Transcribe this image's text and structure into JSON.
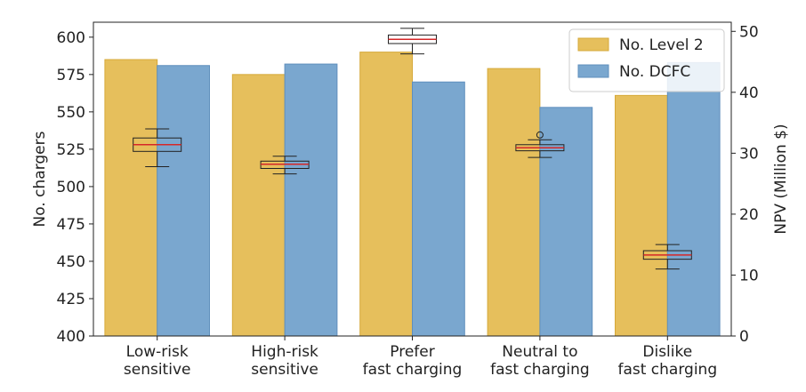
{
  "chart_data": {
    "type": "bar",
    "categories": [
      [
        "Low-risk",
        "sensitive"
      ],
      [
        "High-risk",
        "sensitive"
      ],
      [
        "Prefer",
        "fast charging"
      ],
      [
        "Neutral to",
        "fast charging"
      ],
      [
        "Dislike",
        "fast charging"
      ]
    ],
    "series": [
      {
        "name": "No. Level 2",
        "color": "#e6bf5c",
        "edge": "#d6a93a",
        "values": [
          585,
          575,
          590,
          579,
          561
        ]
      },
      {
        "name": "No. DCFC",
        "color": "#7aa7cf",
        "edge": "#5f8fbd",
        "values": [
          581,
          582,
          570,
          553,
          583
        ]
      }
    ],
    "ylabel": "No. chargers",
    "ylim": [
      400,
      610
    ],
    "yticks": [
      400,
      425,
      450,
      475,
      500,
      525,
      550,
      575,
      600
    ],
    "y2label": "NPV (Million $)",
    "y2lim": [
      0,
      51.5
    ],
    "y2ticks": [
      0,
      10,
      20,
      30,
      40,
      50
    ],
    "npv_boxplots": [
      {
        "whisker_low": 27.8,
        "q1": 30.3,
        "median": 31.4,
        "q3": 32.5,
        "whisker_high": 34.0,
        "outliers": []
      },
      {
        "whisker_low": 26.6,
        "q1": 27.5,
        "median": 28.2,
        "q3": 28.7,
        "whisker_high": 29.5,
        "outliers": []
      },
      {
        "whisker_low": 46.3,
        "q1": 48.0,
        "median": 48.7,
        "q3": 49.4,
        "whisker_high": 50.5,
        "outliers": []
      },
      {
        "whisker_low": 29.3,
        "q1": 30.4,
        "median": 30.9,
        "q3": 31.4,
        "whisker_high": 32.2,
        "outliers": [
          33.0
        ]
      },
      {
        "whisker_low": 11.0,
        "q1": 12.6,
        "median": 13.3,
        "q3": 14.0,
        "whisker_high": 15.0,
        "outliers": []
      }
    ],
    "box_color": "#222222",
    "median_color": "#d62728",
    "legend_position": "top-right"
  }
}
